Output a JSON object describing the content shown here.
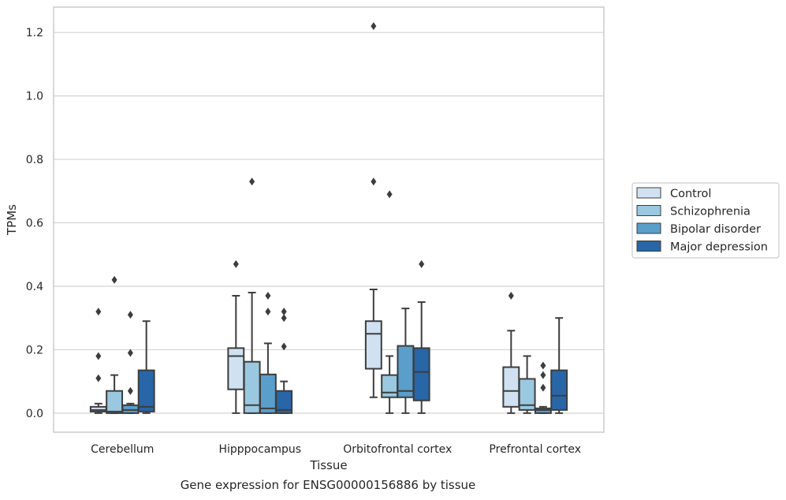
{
  "chart_data": {
    "type": "box",
    "xlabel": "Tissue",
    "ylabel": "TPMs",
    "caption": "Gene expression for ENSG00000156886 by tissue",
    "categories": [
      "Cerebellum",
      "Hipppocampus",
      "Orbitofrontal cortex",
      "Prefrontal cortex"
    ],
    "ylim": [
      -0.06,
      1.28
    ],
    "yticks": [
      0.0,
      0.2,
      0.4,
      0.6,
      0.8,
      1.0,
      1.2
    ],
    "ytick_labels": [
      "0.0",
      "0.2",
      "0.4",
      "0.6",
      "0.8",
      "1.0",
      "1.2"
    ],
    "grid": "horizontal",
    "legend_placement": "right",
    "series": [
      {
        "name": "Control",
        "color": "#d0e1f2",
        "boxes": [
          {
            "whislo": 0.0,
            "q1": 0.005,
            "med": 0.01,
            "q3": 0.02,
            "whishi": 0.03,
            "fliers": [
              0.32,
              0.18,
              0.11
            ]
          },
          {
            "whislo": 0.0,
            "q1": 0.075,
            "med": 0.18,
            "q3": 0.205,
            "whishi": 0.37,
            "fliers": [
              0.47
            ]
          },
          {
            "whislo": 0.05,
            "q1": 0.14,
            "med": 0.25,
            "q3": 0.29,
            "whishi": 0.39,
            "fliers": [
              1.22,
              0.73
            ]
          },
          {
            "whislo": 0.0,
            "q1": 0.02,
            "med": 0.07,
            "q3": 0.145,
            "whishi": 0.26,
            "fliers": [
              0.37
            ]
          }
        ]
      },
      {
        "name": "Schizophrenia",
        "color": "#9ac8e0",
        "boxes": [
          {
            "whislo": 0.0,
            "q1": 0.0,
            "med": 0.005,
            "q3": 0.07,
            "whishi": 0.12,
            "fliers": [
              0.42
            ]
          },
          {
            "whislo": 0.0,
            "q1": 0.0,
            "med": 0.025,
            "q3": 0.162,
            "whishi": 0.38,
            "fliers": [
              0.73
            ]
          },
          {
            "whislo": 0.0,
            "q1": 0.05,
            "med": 0.065,
            "q3": 0.12,
            "whishi": 0.18,
            "fliers": [
              0.69
            ]
          },
          {
            "whislo": 0.0,
            "q1": 0.01,
            "med": 0.025,
            "q3": 0.108,
            "whishi": 0.18,
            "fliers": []
          }
        ]
      },
      {
        "name": "Bipolar disorder",
        "color": "#5a9ecb",
        "boxes": [
          {
            "whislo": 0.0,
            "q1": 0.0,
            "med": 0.01,
            "q3": 0.025,
            "whishi": 0.03,
            "fliers": [
              0.31,
              0.19,
              0.07
            ]
          },
          {
            "whislo": 0.0,
            "q1": 0.0,
            "med": 0.015,
            "q3": 0.122,
            "whishi": 0.22,
            "fliers": [
              0.37,
              0.32
            ]
          },
          {
            "whislo": 0.0,
            "q1": 0.05,
            "med": 0.07,
            "q3": 0.212,
            "whishi": 0.33,
            "fliers": []
          },
          {
            "whislo": 0.0,
            "q1": 0.0,
            "med": 0.01,
            "q3": 0.015,
            "whishi": 0.02,
            "fliers": [
              0.15,
              0.12,
              0.08
            ]
          }
        ]
      },
      {
        "name": "Major depression",
        "color": "#2866a8",
        "boxes": [
          {
            "whislo": 0.0,
            "q1": 0.005,
            "med": 0.02,
            "q3": 0.135,
            "whishi": 0.29,
            "fliers": []
          },
          {
            "whislo": 0.0,
            "q1": 0.0,
            "med": 0.01,
            "q3": 0.07,
            "whishi": 0.1,
            "fliers": [
              0.32,
              0.3,
              0.21
            ]
          },
          {
            "whislo": 0.0,
            "q1": 0.04,
            "med": 0.13,
            "q3": 0.205,
            "whishi": 0.35,
            "fliers": [
              0.47
            ]
          },
          {
            "whislo": 0.0,
            "q1": 0.01,
            "med": 0.055,
            "q3": 0.135,
            "whishi": 0.3,
            "fliers": []
          }
        ]
      }
    ]
  }
}
